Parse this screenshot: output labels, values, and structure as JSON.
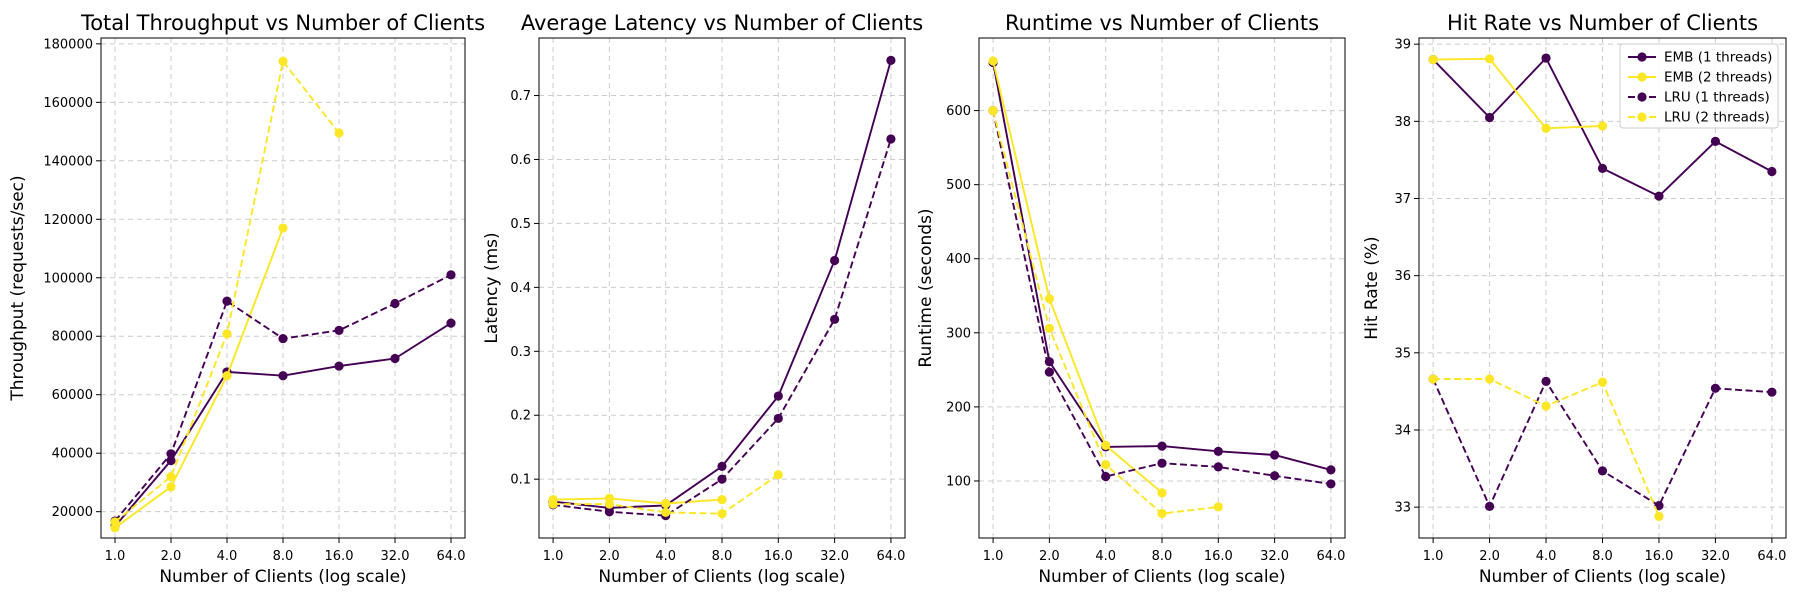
{
  "colors": {
    "emb_1": "#440154",
    "emb_2": "#fde725",
    "lru_1": "#440154",
    "lru_2": "#fde725"
  },
  "chart_data": [
    {
      "type": "line",
      "title": "Total Throughput vs Number of Clients",
      "xlabel": "Number of Clients (log scale)",
      "ylabel": "Throughput (requests/sec)",
      "xscale": "log2",
      "xticks": [
        "1.0",
        "2.0",
        "4.0",
        "8.0",
        "16.0",
        "32.0",
        "64.0"
      ],
      "yticks": [
        "20000",
        "40000",
        "60000",
        "80000",
        "100000",
        "120000",
        "140000",
        "160000",
        "180000"
      ],
      "ylim": [
        11000,
        182000
      ],
      "grid": true,
      "series": [
        {
          "name": "EMB (1 threads)",
          "color": "#440154",
          "dash": false,
          "x": [
            1,
            2,
            4,
            8,
            16,
            32,
            64
          ],
          "y": [
            15000,
            37500,
            67800,
            66500,
            69800,
            72400,
            84500
          ]
        },
        {
          "name": "EMB (2 threads)",
          "color": "#fde725",
          "dash": false,
          "x": [
            1,
            2,
            4,
            8
          ],
          "y": [
            14500,
            28500,
            66500,
            117000
          ]
        },
        {
          "name": "LRU (1 threads)",
          "color": "#440154",
          "dash": true,
          "x": [
            1,
            2,
            4,
            8,
            16,
            32,
            64
          ],
          "y": [
            16800,
            39800,
            92000,
            79200,
            82000,
            91200,
            101000
          ]
        },
        {
          "name": "LRU (2 threads)",
          "color": "#fde725",
          "dash": true,
          "x": [
            1,
            2,
            4,
            8,
            16
          ],
          "y": [
            16500,
            32000,
            80800,
            174000,
            149500
          ]
        }
      ]
    },
    {
      "type": "line",
      "title": "Average Latency vs Number of Clients",
      "xlabel": "Number of Clients (log scale)",
      "ylabel": "Latency (ms)",
      "xscale": "log2",
      "xticks": [
        "1.0",
        "2.0",
        "4.0",
        "8.0",
        "16.0",
        "32.0",
        "64.0"
      ],
      "yticks": [
        "0.1",
        "0.2",
        "0.3",
        "0.4",
        "0.5",
        "0.6",
        "0.7"
      ],
      "ylim": [
        0.008,
        0.79
      ],
      "grid": true,
      "series": [
        {
          "name": "EMB (1 threads)",
          "color": "#440154",
          "dash": false,
          "x": [
            1,
            2,
            4,
            8,
            16,
            32,
            64
          ],
          "y": [
            0.065,
            0.055,
            0.059,
            0.12,
            0.23,
            0.442,
            0.755
          ]
        },
        {
          "name": "EMB (2 threads)",
          "color": "#fde725",
          "dash": false,
          "x": [
            1,
            2,
            4,
            8
          ],
          "y": [
            0.068,
            0.07,
            0.062,
            0.068
          ]
        },
        {
          "name": "LRU (1 threads)",
          "color": "#440154",
          "dash": true,
          "x": [
            1,
            2,
            4,
            8,
            16,
            32,
            64
          ],
          "y": [
            0.06,
            0.049,
            0.043,
            0.1,
            0.195,
            0.35,
            0.632
          ]
        },
        {
          "name": "LRU (2 threads)",
          "color": "#fde725",
          "dash": true,
          "x": [
            1,
            2,
            4,
            8,
            16
          ],
          "y": [
            0.061,
            0.061,
            0.048,
            0.046,
            0.107
          ]
        }
      ]
    },
    {
      "type": "line",
      "title": "Runtime vs Number of Clients",
      "xlabel": "Number of Clients (log scale)",
      "ylabel": "Runtime (seconds)",
      "xscale": "log2",
      "xticks": [
        "1.0",
        "2.0",
        "4.0",
        "8.0",
        "16.0",
        "32.0",
        "64.0"
      ],
      "yticks": [
        "100",
        "200",
        "300",
        "400",
        "500",
        "600"
      ],
      "ylim": [
        23,
        698
      ],
      "grid": true,
      "series": [
        {
          "name": "EMB (1 threads)",
          "color": "#440154",
          "dash": false,
          "x": [
            1,
            2,
            4,
            8,
            16,
            32,
            64
          ],
          "y": [
            665,
            261,
            146,
            147,
            140,
            135,
            115
          ]
        },
        {
          "name": "EMB (2 threads)",
          "color": "#fde725",
          "dash": false,
          "x": [
            1,
            2,
            4,
            8
          ],
          "y": [
            667,
            346,
            148,
            84
          ]
        },
        {
          "name": "LRU (1 threads)",
          "color": "#440154",
          "dash": true,
          "x": [
            1,
            2,
            4,
            8,
            16,
            32,
            64
          ],
          "y": [
            600,
            247,
            106,
            124,
            119,
            107,
            96
          ]
        },
        {
          "name": "LRU (2 threads)",
          "color": "#fde725",
          "dash": true,
          "x": [
            1,
            2,
            4,
            8,
            16
          ],
          "y": [
            600,
            306,
            122,
            56,
            65
          ]
        }
      ]
    },
    {
      "type": "line",
      "title": "Hit Rate vs Number of Clients",
      "xlabel": "Number of Clients (log scale)",
      "ylabel": "Hit Rate (%)",
      "xscale": "log2",
      "xticks": [
        "1.0",
        "2.0",
        "4.0",
        "8.0",
        "16.0",
        "32.0",
        "64.0"
      ],
      "yticks": [
        "33",
        "34",
        "35",
        "36",
        "37",
        "38",
        "39"
      ],
      "ylim": [
        32.6,
        39.08
      ],
      "grid": true,
      "legend": "top-right",
      "series": [
        {
          "name": "EMB (1 threads)",
          "color": "#440154",
          "dash": false,
          "x": [
            1,
            2,
            4,
            8,
            16,
            32,
            64
          ],
          "y": [
            38.8,
            38.05,
            38.82,
            37.39,
            37.03,
            37.74,
            37.35
          ]
        },
        {
          "name": "EMB (2 threads)",
          "color": "#fde725",
          "dash": false,
          "x": [
            1,
            2,
            4,
            8
          ],
          "y": [
            38.8,
            38.81,
            37.91,
            37.94
          ]
        },
        {
          "name": "LRU (1 threads)",
          "color": "#440154",
          "dash": true,
          "x": [
            1,
            2,
            4,
            8,
            16,
            32,
            64
          ],
          "y": [
            34.66,
            33.01,
            34.63,
            33.47,
            33.02,
            34.54,
            34.49
          ]
        },
        {
          "name": "LRU (2 threads)",
          "color": "#fde725",
          "dash": true,
          "x": [
            1,
            2,
            4,
            8,
            16
          ],
          "y": [
            34.66,
            34.66,
            34.31,
            34.62,
            32.88
          ]
        }
      ]
    }
  ]
}
